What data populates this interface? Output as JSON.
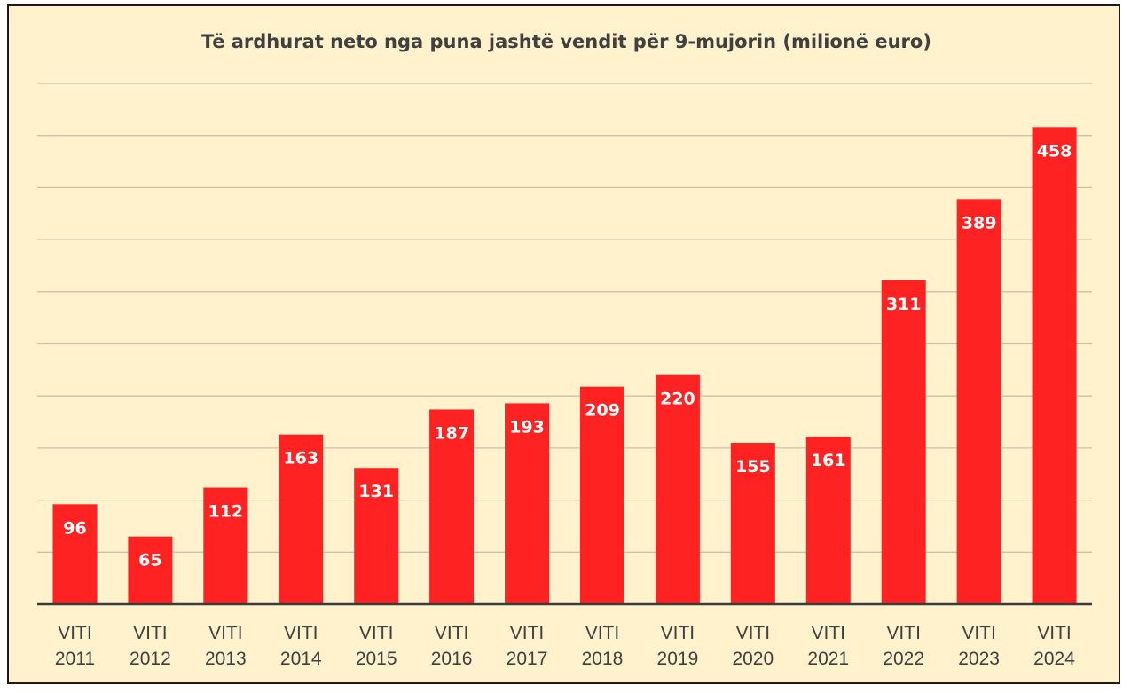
{
  "chart_data": {
    "type": "bar",
    "title": "Të ardhurat neto nga puna jashtë vendit për 9-mujorin (milionë euro)",
    "categories": [
      [
        "VITI",
        "2011"
      ],
      [
        "VITI",
        "2012"
      ],
      [
        "VITI",
        "2013"
      ],
      [
        "VITI",
        "2014"
      ],
      [
        "VITI",
        "2015"
      ],
      [
        "VITI",
        "2016"
      ],
      [
        "VITI",
        "2017"
      ],
      [
        "VITI",
        "2018"
      ],
      [
        "VITI",
        "2019"
      ],
      [
        "VITI",
        "2020"
      ],
      [
        "VITI",
        "2021"
      ],
      [
        "VITI",
        "2022"
      ],
      [
        "VITI",
        "2023"
      ],
      [
        "VITI",
        "2024"
      ]
    ],
    "values": [
      96,
      65,
      112,
      163,
      131,
      187,
      193,
      209,
      220,
      155,
      161,
      311,
      389,
      458
    ],
    "xlabel": "",
    "ylabel": "",
    "ylim": [
      0,
      500
    ],
    "y_gridline_step": 50,
    "grid": true,
    "legend": "none",
    "bar_color": "#ff2222",
    "background_color": "#fff2cc",
    "value_label_color": "#ffffff"
  }
}
